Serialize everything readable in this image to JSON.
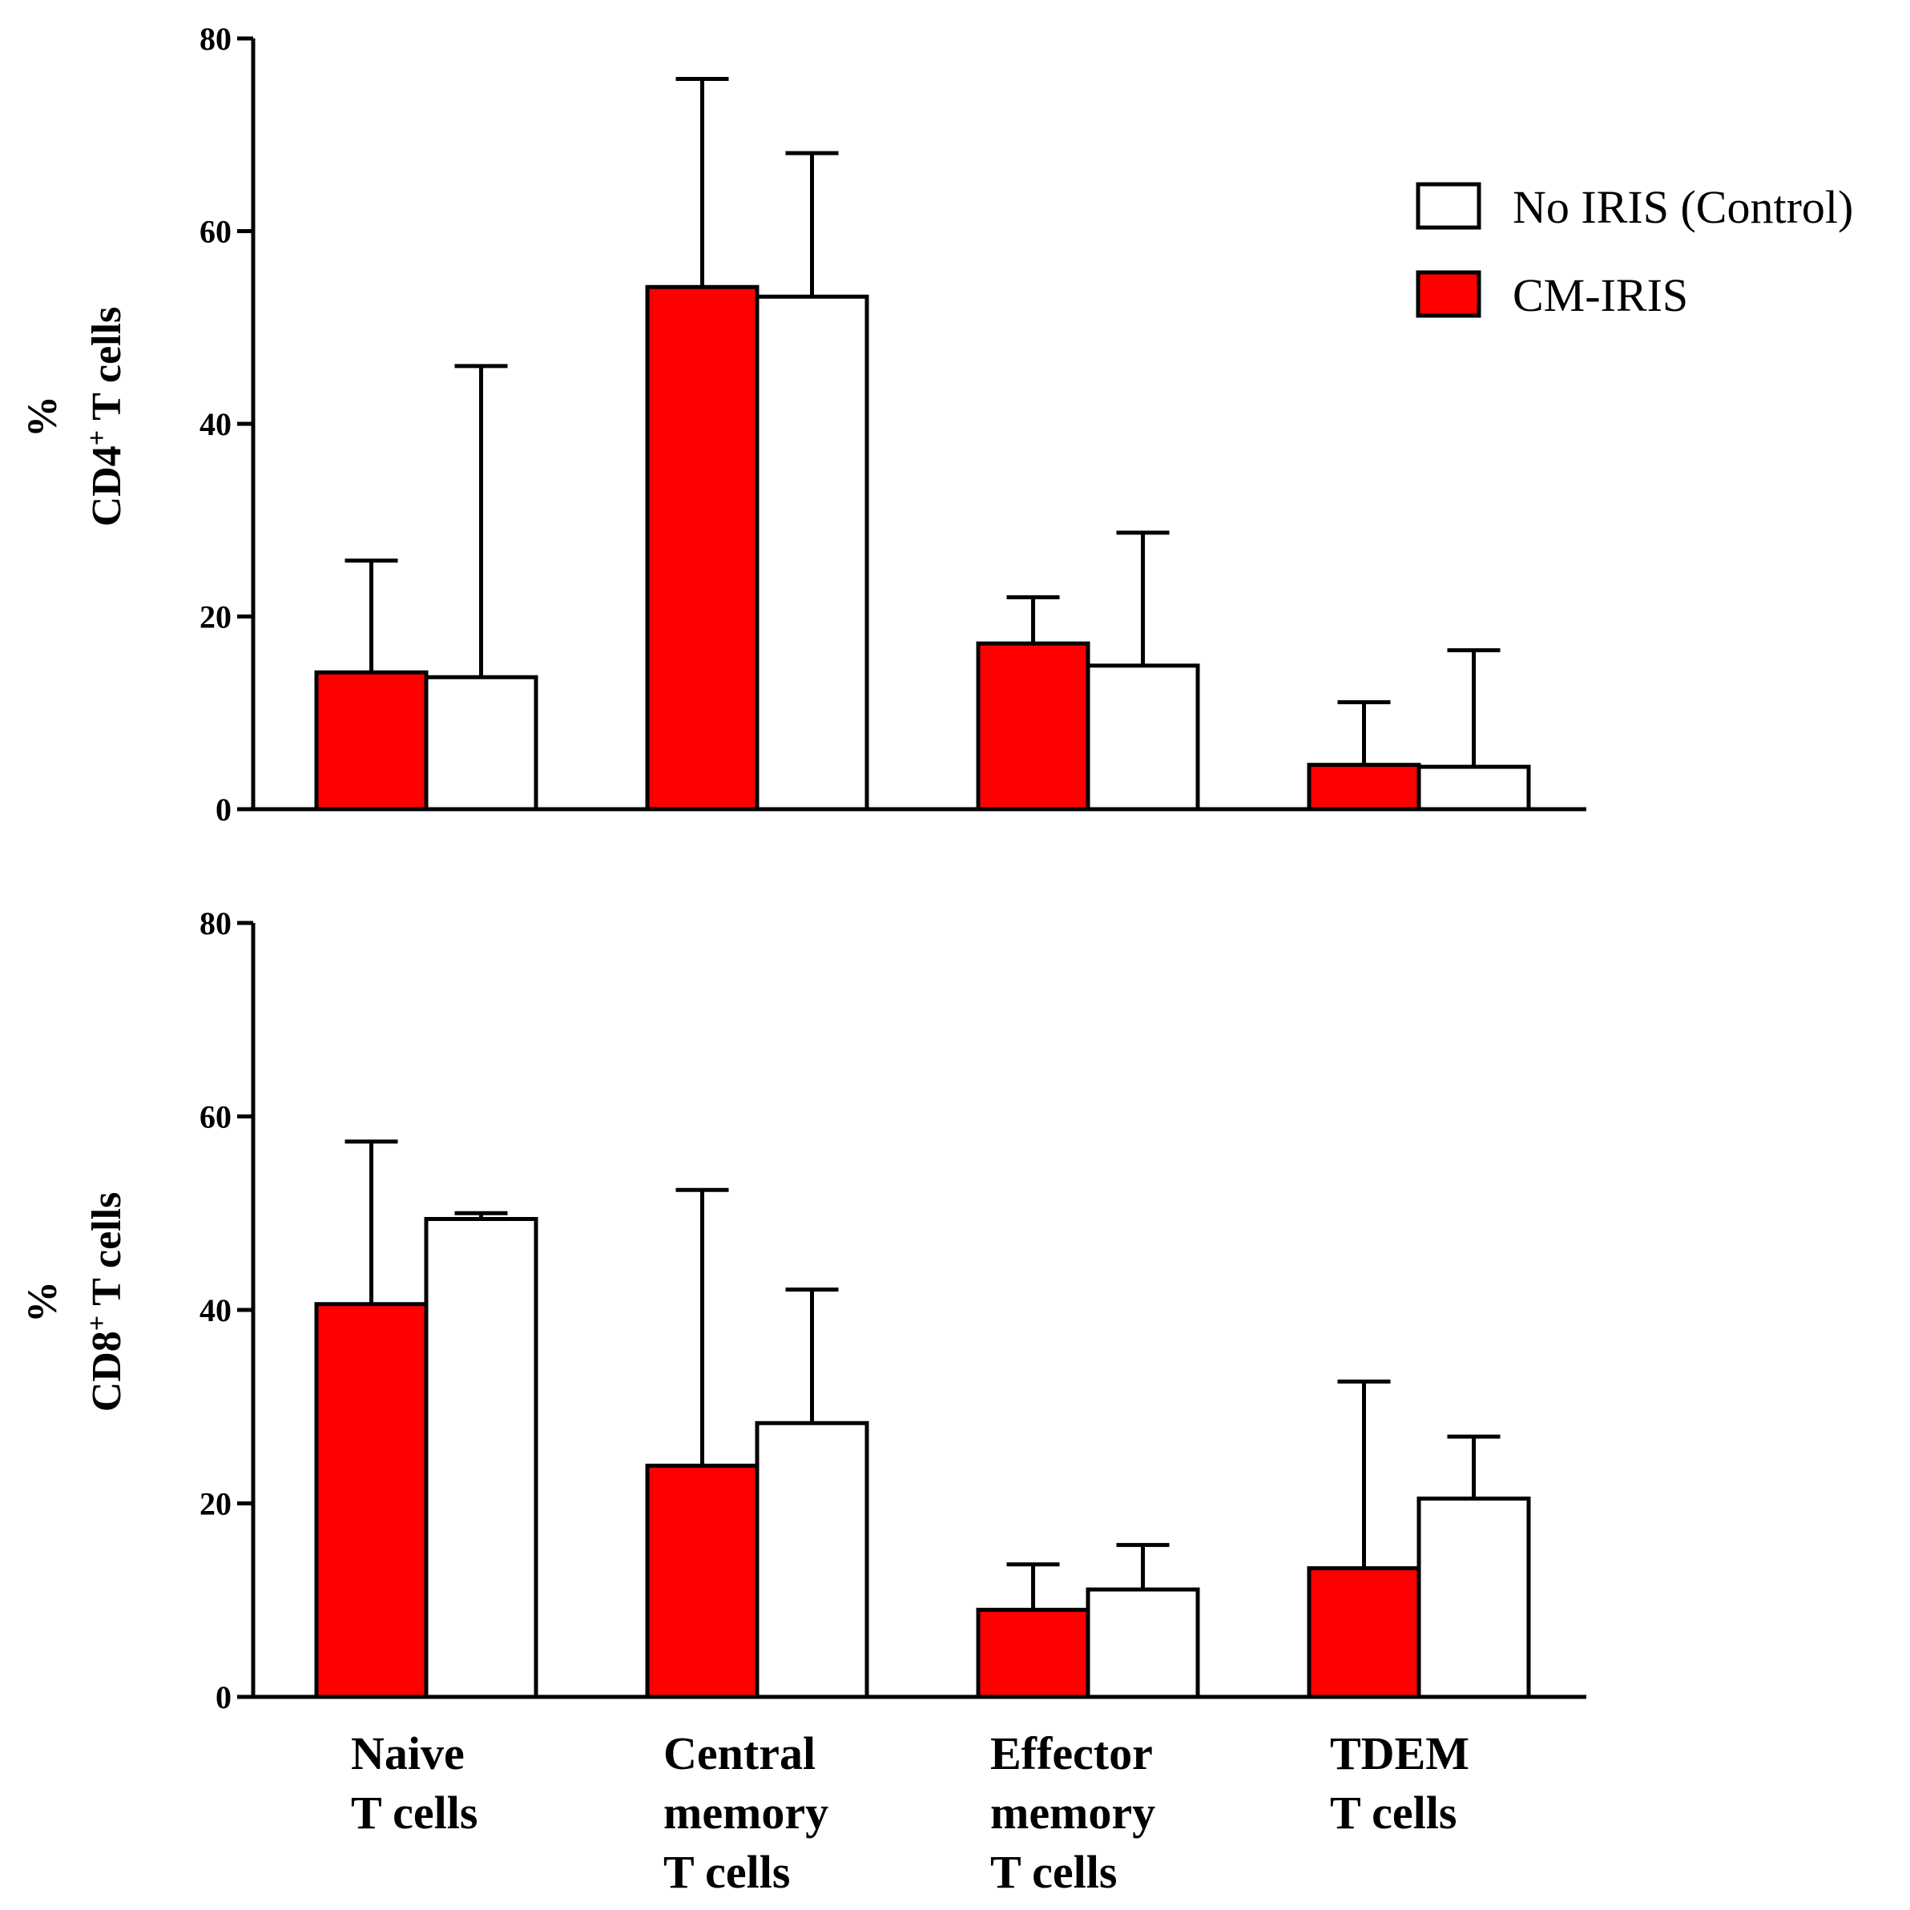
{
  "colors": {
    "cm_iris": "#ff0000",
    "control": "#ffffff",
    "axis": "#000000"
  },
  "legend": {
    "items": [
      {
        "key": "control",
        "label": "No IRIS (Control)"
      },
      {
        "key": "cm_iris",
        "label": "CM-IRIS"
      }
    ]
  },
  "chart_data": [
    {
      "type": "bar",
      "panel": "cd4",
      "ylabel_top": "%",
      "ylabel_main": "CD4",
      "ylabel_sup": "+",
      "ylabel_tail": " T cells",
      "ylim": [
        0,
        80
      ],
      "yticks": [
        "0",
        "20",
        "40",
        "60",
        "80"
      ],
      "categories": [
        "Naive T cells",
        "Central memory T cells",
        "Effector memory T cells",
        "TDEM T cells"
      ],
      "series": [
        {
          "name": "CM-IRIS",
          "key": "cm_iris",
          "values": [
            14.2,
            54.2,
            17.2,
            4.6
          ],
          "error": [
            11.6,
            21.6,
            4.8,
            6.5
          ]
        },
        {
          "name": "No IRIS (Control)",
          "key": "control",
          "values": [
            13.7,
            53.2,
            14.9,
            4.4
          ],
          "error": [
            32.3,
            14.9,
            13.8,
            12.1
          ]
        }
      ]
    },
    {
      "type": "bar",
      "panel": "cd8",
      "ylabel_top": "%",
      "ylabel_main": "CD8",
      "ylabel_sup": "+",
      "ylabel_tail": " T cells",
      "ylim": [
        0,
        80
      ],
      "yticks": [
        "0",
        "20",
        "40",
        "60",
        "80"
      ],
      "categories": [
        "Naive T cells",
        "Central memory T cells",
        "Effector memory T cells",
        "TDEM T cells"
      ],
      "series": [
        {
          "name": "CM-IRIS",
          "key": "cm_iris",
          "values": [
            40.6,
            23.9,
            9.0,
            13.3
          ],
          "error": [
            16.8,
            28.5,
            4.7,
            19.3
          ]
        },
        {
          "name": "No IRIS (Control)",
          "key": "control",
          "values": [
            49.4,
            28.3,
            11.1,
            20.5
          ],
          "error": [
            0.6,
            13.8,
            4.6,
            6.4
          ]
        }
      ]
    }
  ],
  "x_category_labels": [
    [
      "Naive",
      "T cells"
    ],
    [
      "Central",
      "memory",
      "T cells"
    ],
    [
      "Effector",
      "memory",
      "T cells"
    ],
    [
      "TDEM",
      "T cells"
    ]
  ]
}
